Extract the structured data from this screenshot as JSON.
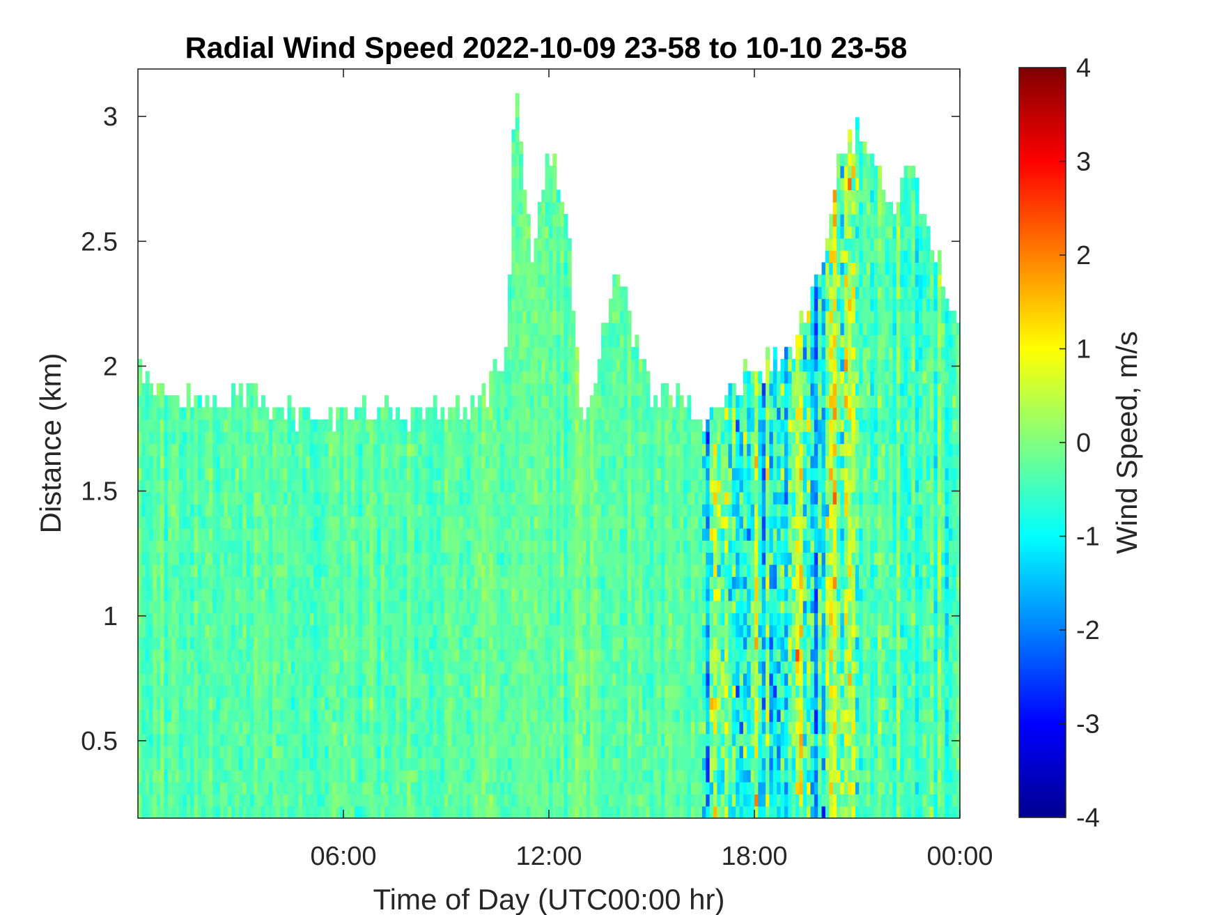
{
  "chart_data": {
    "type": "heatmap",
    "title": "Radial Wind Speed 2022-10-09 23-58 to 10-10 23-58",
    "xlabel": "Time of Day (UTC00:00 hr)",
    "ylabel": "Distance (km)",
    "colorbar_label": "Wind Speed, m/s",
    "xlim": [
      0,
      24
    ],
    "ylim": [
      0.19,
      3.19
    ],
    "clim": [
      -4,
      4
    ],
    "colormap": "jet",
    "x_ticks": [
      {
        "value": 6,
        "label": "06:00"
      },
      {
        "value": 12,
        "label": "12:00"
      },
      {
        "value": 18,
        "label": "18:00"
      },
      {
        "value": 24,
        "label": "00:00"
      }
    ],
    "y_ticks": [
      {
        "value": 0.5,
        "label": "0.5"
      },
      {
        "value": 1,
        "label": "1"
      },
      {
        "value": 1.5,
        "label": "1.5"
      },
      {
        "value": 2,
        "label": "2"
      },
      {
        "value": 2.5,
        "label": "2.5"
      },
      {
        "value": 3,
        "label": "3"
      }
    ],
    "colorbar_ticks": [
      {
        "value": -4,
        "label": "-4"
      },
      {
        "value": -3,
        "label": "-3"
      },
      {
        "value": -2,
        "label": "-2"
      },
      {
        "value": -1,
        "label": "-1"
      },
      {
        "value": 0,
        "label": "0"
      },
      {
        "value": 1,
        "label": "1"
      },
      {
        "value": 2,
        "label": "2"
      },
      {
        "value": 3,
        "label": "3"
      },
      {
        "value": 4,
        "label": "4"
      }
    ],
    "data_top_profile": [
      {
        "time": 0.0,
        "distance": 2.04
      },
      {
        "time": 0.5,
        "distance": 1.93
      },
      {
        "time": 1.0,
        "distance": 1.87
      },
      {
        "time": 2.0,
        "distance": 1.86
      },
      {
        "time": 3.0,
        "distance": 1.9
      },
      {
        "time": 4.0,
        "distance": 1.84
      },
      {
        "time": 5.0,
        "distance": 1.78
      },
      {
        "time": 6.0,
        "distance": 1.8
      },
      {
        "time": 7.0,
        "distance": 1.82
      },
      {
        "time": 8.0,
        "distance": 1.8
      },
      {
        "time": 9.0,
        "distance": 1.83
      },
      {
        "time": 10.0,
        "distance": 1.85
      },
      {
        "time": 10.8,
        "distance": 2.1
      },
      {
        "time": 11.0,
        "distance": 3.19
      },
      {
        "time": 11.5,
        "distance": 2.4
      },
      {
        "time": 12.0,
        "distance": 2.9
      },
      {
        "time": 12.5,
        "distance": 2.6
      },
      {
        "time": 13.0,
        "distance": 1.75
      },
      {
        "time": 13.5,
        "distance": 2.1
      },
      {
        "time": 14.0,
        "distance": 2.4
      },
      {
        "time": 14.5,
        "distance": 2.1
      },
      {
        "time": 15.0,
        "distance": 1.88
      },
      {
        "time": 16.0,
        "distance": 1.86
      },
      {
        "time": 16.5,
        "distance": 1.75
      },
      {
        "time": 17.0,
        "distance": 1.88
      },
      {
        "time": 18.0,
        "distance": 1.98
      },
      {
        "time": 19.0,
        "distance": 2.05
      },
      {
        "time": 19.5,
        "distance": 2.2
      },
      {
        "time": 20.0,
        "distance": 2.4
      },
      {
        "time": 20.5,
        "distance": 2.85
      },
      {
        "time": 21.0,
        "distance": 2.95
      },
      {
        "time": 21.5,
        "distance": 2.85
      },
      {
        "time": 22.0,
        "distance": 2.6
      },
      {
        "time": 22.5,
        "distance": 2.85
      },
      {
        "time": 23.0,
        "distance": 2.6
      },
      {
        "time": 24.0,
        "distance": 2.1
      }
    ],
    "regimes": [
      {
        "time_start": 0,
        "time_end": 16.5,
        "typical_speed": -0.3,
        "spread": 0.45
      },
      {
        "time_start": 16.5,
        "time_end": 21.0,
        "typical_speed": -0.5,
        "spread": 1.6
      },
      {
        "time_start": 21.0,
        "time_end": 24.0,
        "typical_speed": -0.4,
        "spread": 0.7
      }
    ]
  }
}
